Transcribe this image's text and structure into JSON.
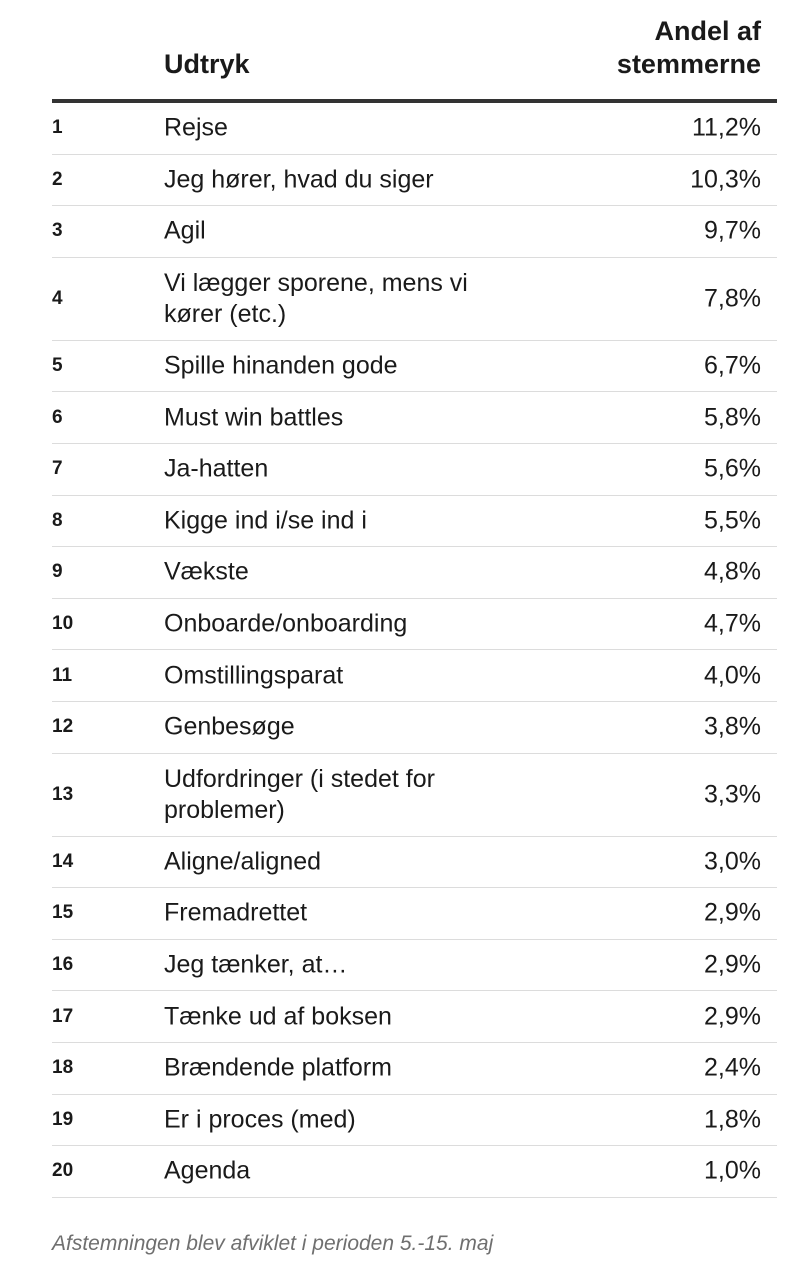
{
  "chart_data": {
    "type": "table",
    "columns": [
      "",
      "Udtryk",
      "Andel af stemmerne"
    ],
    "header": {
      "expression": "Udtryk",
      "share_line1": "Andel af",
      "share_line2": "stemmerne"
    },
    "rows": [
      {
        "rank": "1",
        "expression": "Rejse",
        "share": "11,2%"
      },
      {
        "rank": "2",
        "expression": "Jeg hører, hvad du siger",
        "share": "10,3%"
      },
      {
        "rank": "3",
        "expression": "Agil",
        "share": "9,7%"
      },
      {
        "rank": "4",
        "expression": "Vi lægger sporene, mens vi kører (etc.)",
        "share": "7,8%"
      },
      {
        "rank": "5",
        "expression": "Spille hinanden gode",
        "share": "6,7%"
      },
      {
        "rank": "6",
        "expression": "Must win battles",
        "share": "5,8%"
      },
      {
        "rank": "7",
        "expression": "Ja-hatten",
        "share": "5,6%"
      },
      {
        "rank": "8",
        "expression": "Kigge ind i/se ind i",
        "share": "5,5%"
      },
      {
        "rank": "9",
        "expression": "Vækste",
        "share": "4,8%"
      },
      {
        "rank": "10",
        "expression": "Onboarde/onboarding",
        "share": "4,7%"
      },
      {
        "rank": "11",
        "expression": "Omstillingsparat",
        "share": "4,0%"
      },
      {
        "rank": "12",
        "expression": "Genbesøge",
        "share": "3,8%"
      },
      {
        "rank": "13",
        "expression": "Udfordringer (i stedet for problemer)",
        "share": "3,3%"
      },
      {
        "rank": "14",
        "expression": "Aligne/aligned",
        "share": "3,0%"
      },
      {
        "rank": "15",
        "expression": "Fremadrettet",
        "share": "2,9%"
      },
      {
        "rank": "16",
        "expression": "Jeg tænker, at…",
        "share": "2,9%"
      },
      {
        "rank": "17",
        "expression": "Tænke ud af boksen",
        "share": "2,9%"
      },
      {
        "rank": "18",
        "expression": "Brændende platform",
        "share": "2,4%"
      },
      {
        "rank": "19",
        "expression": "Er i proces (med)",
        "share": "1,8%"
      },
      {
        "rank": "20",
        "expression": "Agenda",
        "share": "1,0%"
      }
    ],
    "footnote": "Afstemningen blev afviklet i perioden 5.-15. maj"
  }
}
